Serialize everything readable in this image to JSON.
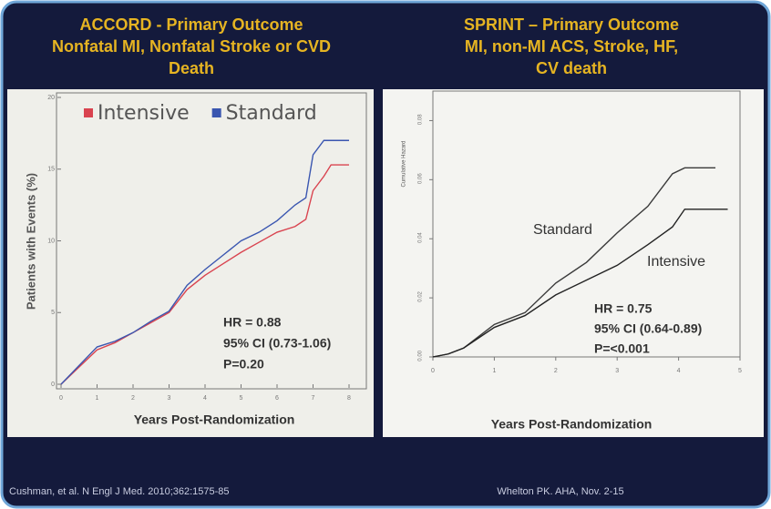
{
  "chart_data": [
    {
      "type": "line",
      "title": [
        "ACCORD - Primary Outcome",
        "Nonfatal MI, Nonfatal Stroke or CVD",
        "Death"
      ],
      "x_label": "Years Post-Randomization",
      "y_label": "Patients with Events (%)",
      "x": [
        0,
        0.5,
        1,
        1.5,
        2,
        2.5,
        3,
        3.5,
        4,
        4.5,
        5,
        5.5,
        6,
        6.5,
        6.8,
        7,
        7.3,
        7.5,
        8
      ],
      "series": [
        {
          "name": "Intensive",
          "color": "#d9434f",
          "values": [
            0,
            1.2,
            2.4,
            2.9,
            3.6,
            4.3,
            5.0,
            6.6,
            7.6,
            8.4,
            9.2,
            9.9,
            10.6,
            11.0,
            11.5,
            13.5,
            14.5,
            15.3,
            15.3
          ]
        },
        {
          "name": "Standard",
          "color": "#3a56b0",
          "values": [
            0,
            1.3,
            2.6,
            3.0,
            3.6,
            4.4,
            5.1,
            6.9,
            8.0,
            9.0,
            10.0,
            10.6,
            11.4,
            12.5,
            13.0,
            16.0,
            17.0,
            17.0,
            17.0
          ]
        }
      ],
      "xlim": [
        0,
        8
      ],
      "xticks": [
        0,
        1,
        2,
        3,
        4,
        5,
        6,
        7,
        8
      ],
      "ylim": [
        0,
        20
      ],
      "yticks": [
        0,
        5,
        10,
        15,
        20
      ],
      "legend": "top-left",
      "annotations": [
        "HR = 0.88",
        "95% CI (0.73-1.06)",
        "P=0.20"
      ],
      "footnote": "Cushman, et al. N Engl J Med. 2010;362:1575-85"
    },
    {
      "type": "line",
      "title": [
        "SPRINT – Primary Outcome",
        "MI, non-MI ACS, Stroke, HF,",
        "CV death"
      ],
      "x_label": "Years Post-Randomization",
      "y_label": "Cumulative Hazard",
      "x": [
        0,
        0.25,
        0.5,
        1,
        1.5,
        2,
        2.5,
        3,
        3.5,
        3.9,
        4.1,
        4.6,
        4.8
      ],
      "series": [
        {
          "name": "Standard",
          "color": "#3a3a3a",
          "values": [
            0,
            0.001,
            0.003,
            0.011,
            0.015,
            0.025,
            0.032,
            0.042,
            0.051,
            0.062,
            0.064,
            0.064,
            null
          ]
        },
        {
          "name": "Intensive",
          "color": "#222222",
          "values": [
            0,
            0.001,
            0.003,
            0.01,
            0.014,
            0.021,
            0.026,
            0.031,
            0.038,
            0.044,
            0.05,
            0.05,
            0.05
          ]
        }
      ],
      "xlim": [
        0,
        5
      ],
      "xticks": [
        0,
        1,
        2,
        3,
        4,
        5
      ],
      "ylim": [
        0,
        0.09
      ],
      "yticks": [
        {
          "value": 0,
          "label": "0.00"
        },
        {
          "value": 0.02,
          "label": "0.02"
        },
        {
          "value": 0.04,
          "label": "0.04"
        },
        {
          "value": 0.06,
          "label": "0.06"
        },
        {
          "value": 0.08,
          "label": "0.08"
        }
      ],
      "legend": "none",
      "annotations": [
        "HR = 0.75",
        "95% CI (0.64-0.89)",
        "P=<0.001"
      ],
      "footnote": "Whelton PK. AHA, Nov. 2-15"
    }
  ]
}
